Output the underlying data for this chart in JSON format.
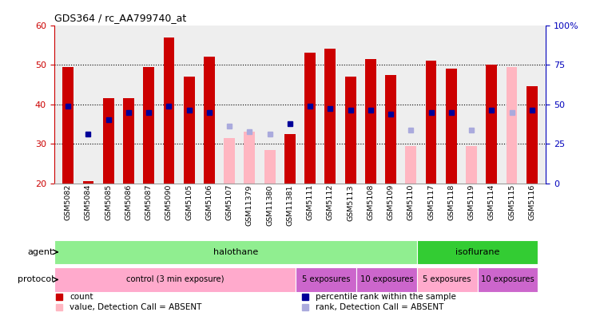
{
  "title": "GDS364 / rc_AA799740_at",
  "samples": [
    "GSM5082",
    "GSM5084",
    "GSM5085",
    "GSM5086",
    "GSM5087",
    "GSM5090",
    "GSM5105",
    "GSM5106",
    "GSM5107",
    "GSM11379",
    "GSM11380",
    "GSM11381",
    "GSM5111",
    "GSM5112",
    "GSM5113",
    "GSM5108",
    "GSM5109",
    "GSM5110",
    "GSM5117",
    "GSM5118",
    "GSM5119",
    "GSM5114",
    "GSM5115",
    "GSM5116"
  ],
  "red_values": [
    49.5,
    20.5,
    41.5,
    41.5,
    49.5,
    57,
    47,
    52,
    null,
    null,
    null,
    32.5,
    53,
    54,
    47,
    51.5,
    47.5,
    null,
    51,
    49,
    null,
    50,
    null,
    44.5
  ],
  "pink_values": [
    null,
    null,
    null,
    null,
    null,
    null,
    null,
    null,
    31.5,
    33,
    28.5,
    null,
    null,
    null,
    null,
    null,
    null,
    29.5,
    null,
    null,
    29.5,
    null,
    49.5,
    null
  ],
  "blue_values": [
    39.5,
    32.5,
    36,
    38,
    38,
    39.5,
    38.5,
    38,
    null,
    null,
    null,
    35,
    39.5,
    39,
    38.5,
    38.5,
    37.5,
    null,
    38,
    38,
    null,
    38.5,
    null,
    38.5
  ],
  "lightblue_values": [
    null,
    null,
    null,
    null,
    null,
    null,
    null,
    null,
    34.5,
    33,
    32.5,
    null,
    null,
    null,
    null,
    null,
    null,
    33.5,
    null,
    null,
    33.5,
    null,
    38,
    null
  ],
  "ylim_left": [
    20,
    60
  ],
  "yticks_left": [
    20,
    30,
    40,
    50,
    60
  ],
  "yticks_right": [
    0,
    25,
    50,
    75,
    100
  ],
  "yticklabels_right": [
    "0",
    "25",
    "50",
    "75",
    "100%"
  ],
  "agent_groups": [
    {
      "label": "halothane",
      "start": 0,
      "end": 18,
      "color": "#90EE90"
    },
    {
      "label": "isoflurane",
      "start": 18,
      "end": 24,
      "color": "#33CC33"
    }
  ],
  "protocol_groups": [
    {
      "label": "control (3 min exposure)",
      "start": 0,
      "end": 12,
      "color": "#FFAACC"
    },
    {
      "label": "5 exposures",
      "start": 12,
      "end": 15,
      "color": "#CC66CC"
    },
    {
      "label": "10 exposures",
      "start": 15,
      "end": 18,
      "color": "#CC66CC"
    },
    {
      "label": "5 exposures",
      "start": 18,
      "end": 21,
      "color": "#FFAACC"
    },
    {
      "label": "10 exposures",
      "start": 21,
      "end": 24,
      "color": "#CC66CC"
    }
  ],
  "bar_width": 0.55,
  "red_color": "#CC0000",
  "pink_color": "#FFB6C1",
  "blue_color": "#000099",
  "lightblue_color": "#AAAADD",
  "bg_color": "#FFFFFF",
  "left_axis_color": "#CC0000",
  "right_axis_color": "#0000BB"
}
